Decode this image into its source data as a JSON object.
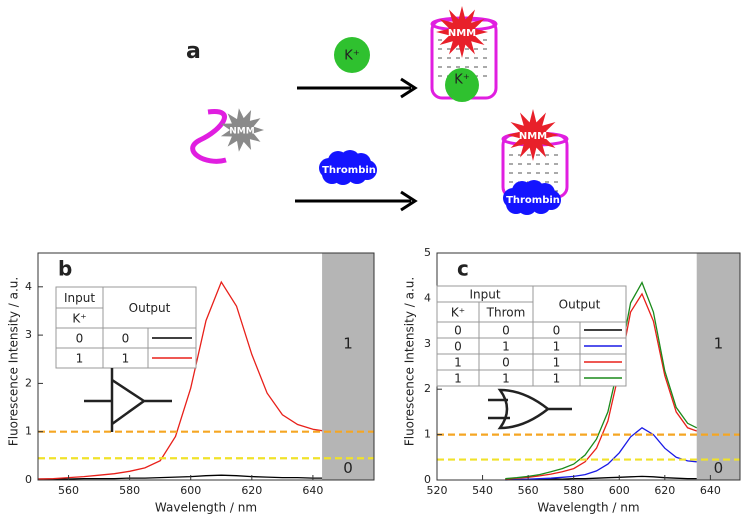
{
  "figure_a": {
    "panel": "a",
    "ion": "K⁺",
    "dye": "NMM",
    "protein": "Thrombin"
  },
  "chart_data": [
    {
      "type": "line",
      "panel": "b",
      "x_label": "Wavelength / nm",
      "y_label": "Fluorescence Intensity / a.u.",
      "xlim": [
        550,
        660
      ],
      "xticks": [
        560,
        580,
        600,
        620,
        640
      ],
      "ylim": [
        0,
        4.7
      ],
      "yticks": [
        0,
        1,
        2,
        3,
        4
      ],
      "x": [
        550,
        555,
        560,
        565,
        570,
        575,
        580,
        585,
        590,
        595,
        600,
        605,
        610,
        615,
        620,
        625,
        630,
        635,
        640,
        643
      ],
      "series": [
        {
          "color": "#000000",
          "values": [
            0.02,
            0.02,
            0.02,
            0.03,
            0.03,
            0.03,
            0.04,
            0.04,
            0.05,
            0.06,
            0.07,
            0.09,
            0.1,
            0.09,
            0.07,
            0.06,
            0.05,
            0.05,
            0.04,
            0.04
          ]
        },
        {
          "color": "#e8201a",
          "values": [
            0.02,
            0.03,
            0.05,
            0.07,
            0.1,
            0.13,
            0.18,
            0.25,
            0.4,
            0.9,
            1.9,
            3.3,
            4.1,
            3.6,
            2.6,
            1.8,
            1.35,
            1.15,
            1.05,
            1.02
          ]
        }
      ],
      "hlines": [
        {
          "value": 1,
          "color": "#f5a623"
        },
        {
          "value": 0.45,
          "color": "#f0e22a"
        }
      ],
      "band": {
        "xlim": [
          643,
          660
        ],
        "color": "#b5b5b5",
        "labels": [
          "1",
          "0"
        ]
      },
      "truth_table": {
        "header": [
          "Input",
          "Output"
        ],
        "inputs": [
          "K⁺"
        ],
        "rows": [
          [
            "0",
            "0"
          ],
          [
            "1",
            "1"
          ]
        ]
      }
    },
    {
      "type": "line",
      "panel": "c",
      "x_label": "Wavelength / nm",
      "y_label": "Fluorescence Intensity / a.u.",
      "xlim": [
        520,
        653
      ],
      "xticks": [
        520,
        540,
        560,
        580,
        600,
        620,
        640
      ],
      "ylim": [
        0,
        5
      ],
      "yticks": [
        0,
        1,
        2,
        3,
        4,
        5
      ],
      "x": [
        550,
        555,
        560,
        565,
        570,
        575,
        580,
        585,
        590,
        595,
        600,
        605,
        610,
        615,
        620,
        625,
        630,
        634
      ],
      "series": [
        {
          "color": "#000000",
          "values": [
            0.01,
            0.01,
            0.01,
            0.02,
            0.02,
            0.02,
            0.03,
            0.03,
            0.04,
            0.05,
            0.06,
            0.07,
            0.08,
            0.07,
            0.05,
            0.04,
            0.03,
            0.03
          ]
        },
        {
          "color": "#1a1ae6",
          "values": [
            0,
            0.01,
            0.02,
            0.03,
            0.04,
            0.06,
            0.08,
            0.12,
            0.2,
            0.35,
            0.6,
            0.95,
            1.15,
            1.0,
            0.7,
            0.5,
            0.42,
            0.4
          ]
        },
        {
          "color": "#e8201a",
          "values": [
            0.02,
            0.04,
            0.06,
            0.09,
            0.13,
            0.18,
            0.25,
            0.4,
            0.7,
            1.3,
            2.4,
            3.7,
            4.1,
            3.5,
            2.3,
            1.5,
            1.15,
            1.08
          ]
        },
        {
          "color": "#1a8a1a",
          "values": [
            0.03,
            0.05,
            0.08,
            0.12,
            0.18,
            0.25,
            0.35,
            0.55,
            0.9,
            1.5,
            2.6,
            3.9,
            4.35,
            3.7,
            2.4,
            1.6,
            1.25,
            1.15
          ]
        }
      ],
      "hlines": [
        {
          "value": 1,
          "color": "#f5a623"
        },
        {
          "value": 0.45,
          "color": "#f0e22a"
        }
      ],
      "band": {
        "xlim": [
          634,
          653
        ],
        "color": "#b5b5b5",
        "labels": [
          "1",
          "0"
        ]
      },
      "truth_table": {
        "header": [
          "Input",
          "Output"
        ],
        "inputs": [
          "K⁺",
          "Throm"
        ],
        "rows": [
          [
            "0",
            "0",
            "0"
          ],
          [
            "0",
            "1",
            "1"
          ],
          [
            "1",
            "0",
            "1"
          ],
          [
            "1",
            "1",
            "1"
          ]
        ]
      }
    }
  ]
}
